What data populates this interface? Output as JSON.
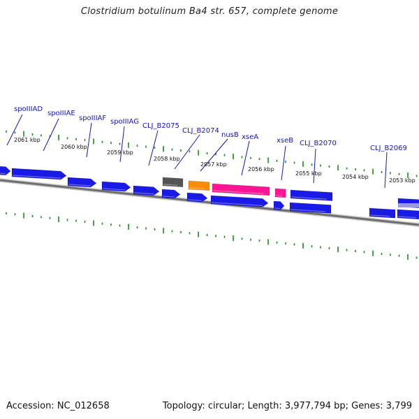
{
  "title": "Clostridium botulinum Ba4 str. 657, complete genome",
  "footer": {
    "accession": "Accession: NC_012658",
    "summary": "Topology: circular; Length: 3,977,794 bp; Genes: 3,799"
  },
  "colors": {
    "cds_blue": "#1a1ae6",
    "dark_gray": "#555555",
    "orange": "#ff8c00",
    "magenta": "#ff1493",
    "lavender": "#9a9add",
    "tick_green": "#1a8a1a",
    "backbone": "#777777",
    "label_blue": "#1515b8"
  },
  "kbp_labels": [
    "2061 kbp",
    "2060 kbp",
    "2059 kbp",
    "2058 kbp",
    "2057 kbp",
    "2056 kbp",
    "2055 kbp",
    "2054 kbp",
    "2053 kbp"
  ],
  "gene_labels": [
    "spoIIIAD",
    "spoIIIAE",
    "spoIIIAF",
    "spoIIIAG",
    "CLJ_B2075",
    "CLJ_B2074",
    "nusB",
    "xseA",
    "xseB",
    "CLJ_B2070",
    "CLJ_B2069"
  ]
}
